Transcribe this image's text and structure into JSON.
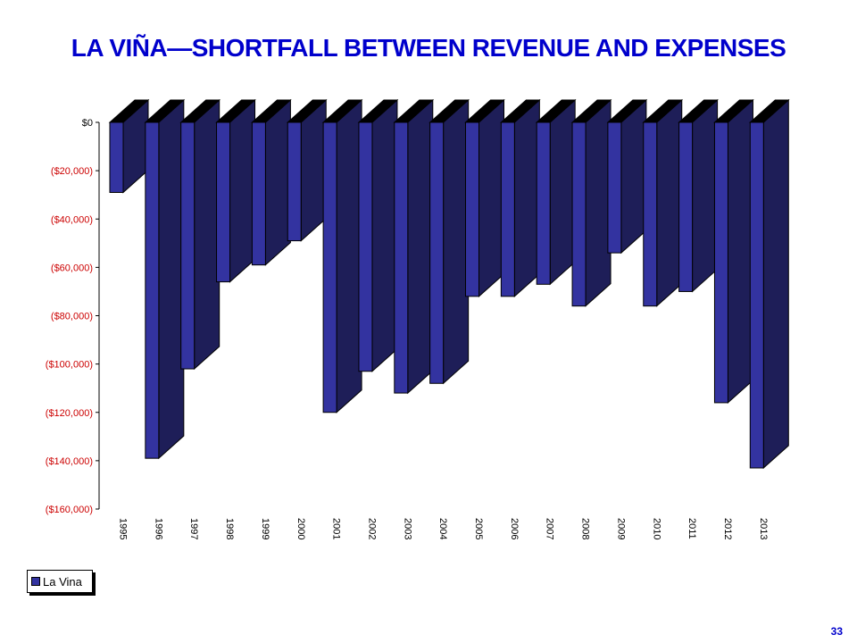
{
  "slide": {
    "title": "LA VIÑA—SHORTFALL BETWEEN REVENUE AND EXPENSES",
    "page_number": "33"
  },
  "colors": {
    "title": "#0000cc",
    "bar_front": "#3333a0",
    "bar_side": "#1e1e58",
    "bar_top": "#000000",
    "tick_label": "#cc0000"
  },
  "chart_data": {
    "type": "bar",
    "style": "3d-column",
    "categories": [
      "1995",
      "1996",
      "1997",
      "1998",
      "1999",
      "2000",
      "2001",
      "2002",
      "2003",
      "2004",
      "2005",
      "2006",
      "2007",
      "2008",
      "2009",
      "2010",
      "2011",
      "2012",
      "2013"
    ],
    "series": [
      {
        "name": "La Vina",
        "values": [
          -29000,
          -139000,
          -102000,
          -66000,
          -59000,
          -49000,
          -120000,
          -103000,
          -112000,
          -108000,
          -72000,
          -72000,
          -67000,
          -76000,
          -54000,
          -76000,
          -70000,
          -116000,
          -143000
        ]
      }
    ],
    "ylim": [
      -160000,
      0
    ],
    "yticks": [
      0,
      -20000,
      -40000,
      -60000,
      -80000,
      -100000,
      -120000,
      -140000,
      -160000
    ],
    "ytick_labels": [
      "$0",
      "($20,000)",
      "($40,000)",
      "($60,000)",
      "($80,000)",
      "($100,000)",
      "($120,000)",
      "($140,000)",
      "($160,000)"
    ],
    "legend": {
      "position": "bottom-left",
      "entries": [
        "La Vina"
      ]
    },
    "grid": false
  }
}
